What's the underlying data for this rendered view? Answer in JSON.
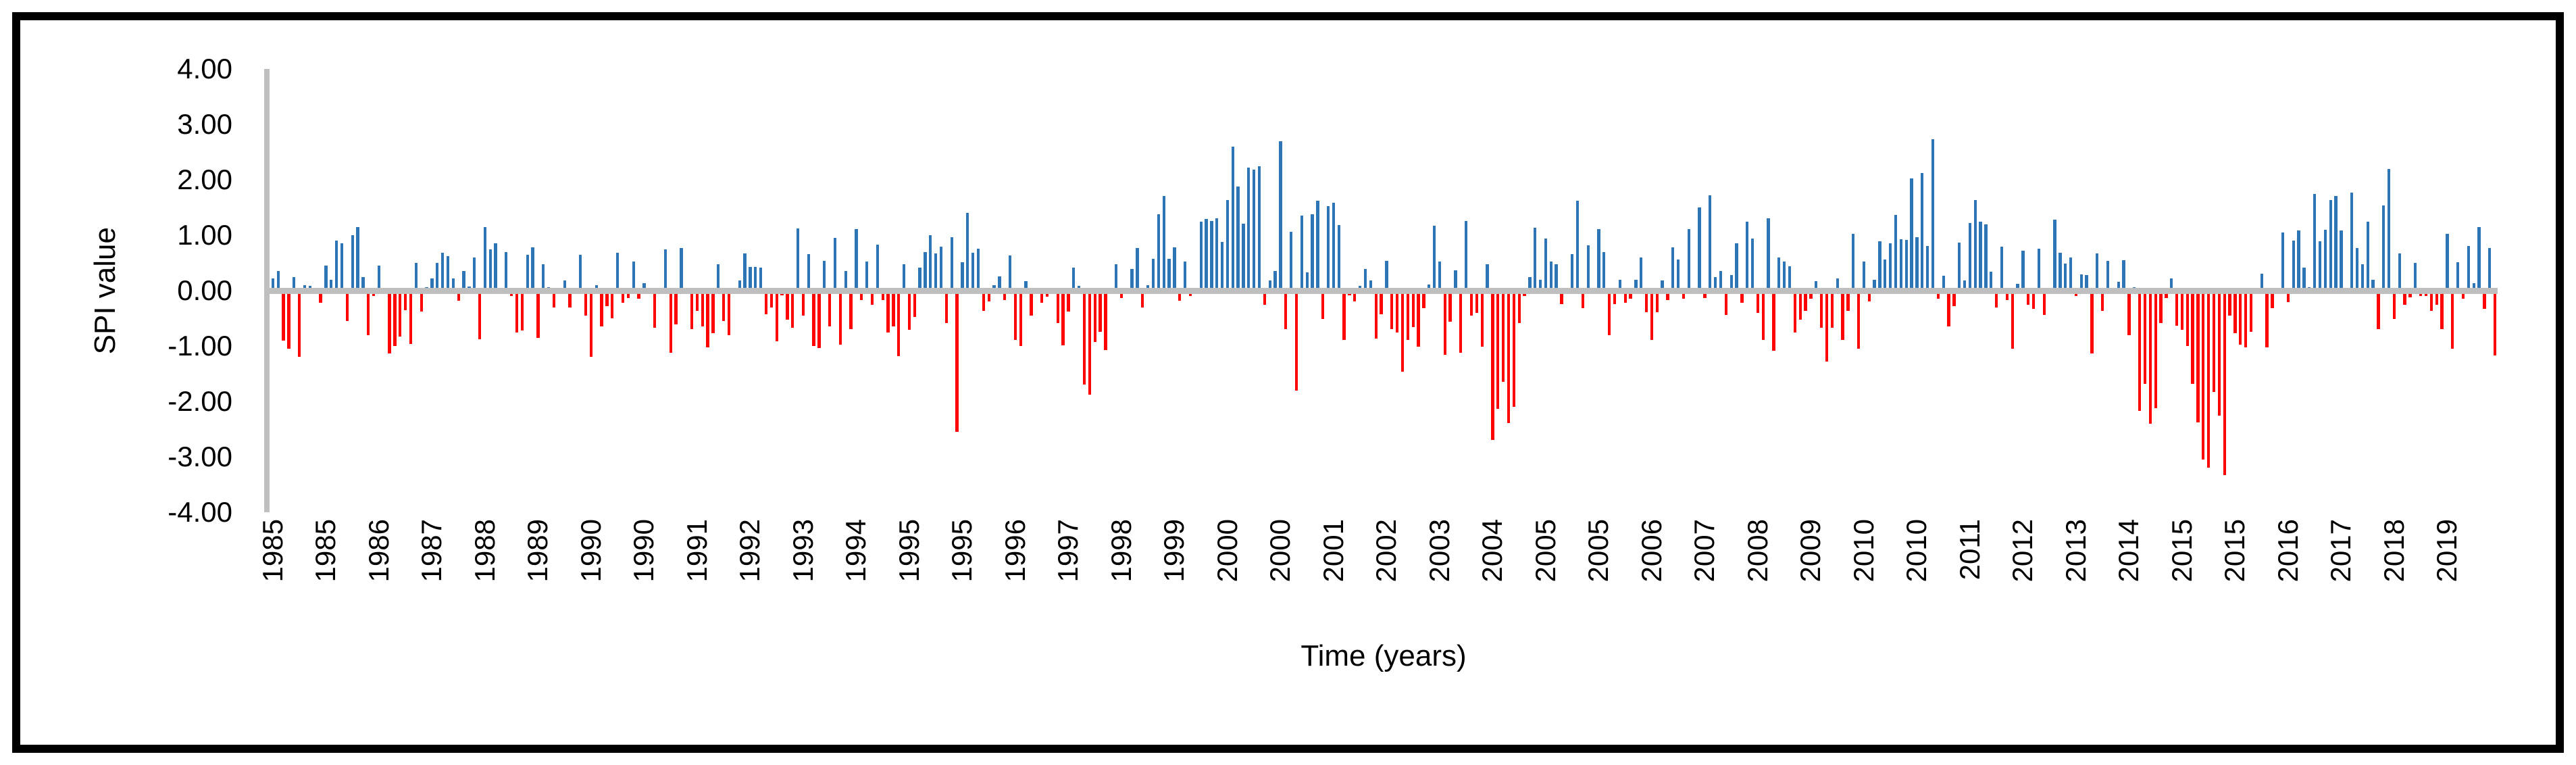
{
  "figure": {
    "background": "#FFFFFF",
    "border_color": "#000000"
  },
  "chart_data": {
    "type": "bar",
    "title": "",
    "ylabel": "SPI value",
    "xlabel": "Time (years)",
    "ylim": [
      -4,
      4
    ],
    "ytick_step": 1,
    "ytick_labels": [
      "4.00",
      "3.00",
      "2.00",
      "1.00",
      "0.00",
      "-1.00",
      "-2.00",
      "-3.00",
      "-4.00"
    ],
    "grid": false,
    "legend_position": "none",
    "x_start": "1985-01",
    "x_freq": "monthly",
    "xtick_every": 10,
    "xtick_labels": [
      "1985",
      "1985",
      "1986",
      "1987",
      "1988",
      "1989",
      "1990",
      "1990",
      "1991",
      "1992",
      "1993",
      "1994",
      "1995",
      "1995",
      "1996",
      "1997",
      "1998",
      "1999",
      "2000",
      "2000",
      "2001",
      "2002",
      "2003",
      "2004",
      "2005",
      "2005",
      "2006",
      "2007",
      "2008",
      "2009",
      "2010",
      "2010",
      "2011",
      "2012",
      "2013",
      "2014",
      "2015",
      "2015",
      "2016",
      "2017",
      "2018",
      "2019"
    ],
    "positive_color": "#2E75B6",
    "negative_color": "#FF0000",
    "axis_color": "#BFBFBF",
    "values": [
      0.22,
      0.35,
      -0.9,
      -1.05,
      0.25,
      -1.2,
      0.1,
      0.08,
      -0.05,
      -0.22,
      0.45,
      0.2,
      0.9,
      0.85,
      -0.55,
      1.0,
      1.15,
      0.25,
      -0.8,
      -0.1,
      0.45,
      -0.05,
      -1.14,
      -1.0,
      -0.83,
      -0.35,
      -0.96,
      0.5,
      -0.38,
      0.06,
      0.22,
      0.5,
      0.68,
      0.62,
      0.22,
      -0.18,
      0.35,
      0.07,
      0.6,
      -0.88,
      1.15,
      0.75,
      0.85,
      0.02,
      0.7,
      -0.1,
      -0.75,
      -0.72,
      0.65,
      0.78,
      -0.85,
      0.48,
      0.06,
      -0.3,
      0.05,
      0.18,
      -0.3,
      0.02,
      0.65,
      -0.45,
      -1.2,
      0.1,
      -0.65,
      -0.28,
      -0.5,
      0.68,
      -0.22,
      -0.14,
      0.52,
      -0.15,
      0.14,
      -0.02,
      -0.67,
      0.02,
      0.75,
      -1.12,
      -0.61,
      0.77,
      -0.05,
      -0.69,
      -0.37,
      -0.65,
      -1.02,
      -0.77,
      0.48,
      -0.55,
      -0.81,
      -0.06,
      0.18,
      0.67,
      0.43,
      0.43,
      0.42,
      -0.43,
      -0.3,
      -0.92,
      -0.08,
      -0.53,
      -0.67,
      1.12,
      -0.45,
      0.66,
      -1.0,
      -1.04,
      0.54,
      -0.65,
      0.95,
      -0.98,
      0.35,
      -0.69,
      1.11,
      -0.17,
      0.52,
      -0.26,
      0.83,
      -0.17,
      -0.75,
      -0.65,
      -1.18,
      0.47,
      -0.71,
      -0.47,
      0.41,
      0.7,
      1.0,
      0.67,
      0.79,
      -0.58,
      0.96,
      -2.55,
      0.51,
      1.4,
      0.68,
      0.76,
      -0.37,
      -0.2,
      0.1,
      0.26,
      -0.17,
      0.64,
      -0.89,
      -1.0,
      0.17,
      -0.45,
      -0.03,
      -0.22,
      -0.11,
      -0.04,
      -0.58,
      -0.99,
      -0.38,
      0.42,
      0.08,
      -1.7,
      -1.88,
      -0.93,
      -0.74,
      -1.07,
      -0.02,
      0.48,
      -0.13,
      -0.05,
      0.39,
      0.77,
      -0.3,
      0.1,
      0.57,
      1.38,
      1.71,
      0.57,
      0.78,
      -0.18,
      0.53,
      -0.1,
      0.03,
      1.25,
      1.29,
      1.26,
      1.3,
      0.88,
      1.63,
      2.6,
      1.88,
      1.21,
      2.22,
      2.18,
      2.24,
      -0.25,
      0.18,
      0.35,
      2.7,
      -0.7,
      1.06,
      -1.8,
      1.35,
      0.33,
      1.38,
      1.62,
      -0.51,
      1.53,
      1.58,
      1.18,
      -0.89,
      -0.08,
      -0.2,
      0.08,
      0.39,
      0.18,
      -0.87,
      -0.43,
      0.54,
      -0.69,
      -0.75,
      -1.46,
      -0.89,
      -0.66,
      -1.01,
      -0.32,
      0.11,
      1.17,
      0.52,
      -1.16,
      -0.56,
      0.36,
      -1.12,
      1.26,
      -0.45,
      -0.4,
      -1.01,
      0.47,
      -2.7,
      -2.13,
      -1.65,
      -2.39,
      -2.1,
      -0.58,
      -0.1,
      0.24,
      1.13,
      0.2,
      0.94,
      0.53,
      0.47,
      -0.24,
      0.05,
      0.66,
      1.62,
      -0.32,
      0.82,
      0.03,
      1.11,
      0.69,
      -0.81,
      -0.24,
      0.2,
      -0.22,
      -0.15,
      0.2,
      0.6,
      -0.39,
      -0.89,
      -0.39,
      0.18,
      -0.17,
      0.78,
      0.56,
      -0.15,
      1.11,
      -0.02,
      1.5,
      -0.13,
      1.72,
      0.24,
      0.35,
      -0.44,
      0.28,
      0.85,
      -0.22,
      1.24,
      0.94,
      -0.4,
      -0.89,
      1.3,
      -1.08,
      0.6,
      0.53,
      0.44,
      -0.76,
      -0.52,
      -0.37,
      -0.15,
      0.17,
      -0.67,
      -1.28,
      -0.67,
      0.22,
      -0.89,
      -0.37,
      1.02,
      -1.05,
      0.52,
      -0.2,
      0.2,
      0.89,
      0.56,
      0.85,
      1.37,
      0.93,
      0.91,
      2.02,
      0.96,
      2.12,
      0.8,
      2.73,
      -0.15,
      0.27,
      -0.65,
      -0.28,
      0.87,
      0.18,
      1.22,
      1.63,
      1.25,
      1.19,
      0.34,
      -0.3,
      0.79,
      -0.17,
      -1.05,
      0.12,
      0.72,
      -0.25,
      -0.33,
      0.76,
      -0.44,
      -0.02,
      1.28,
      0.68,
      0.49,
      0.6,
      -0.1,
      0.29,
      0.28,
      -1.13,
      0.67,
      -0.37,
      0.54,
      -0.04,
      0.16,
      0.55,
      -0.8,
      0.06,
      -2.17,
      -1.68,
      -2.4,
      -2.12,
      -0.59,
      -0.13,
      0.22,
      -0.64,
      -0.71,
      -1.0,
      -1.68,
      -2.38,
      -3.05,
      -3.2,
      -1.83,
      -2.25,
      -3.33,
      -0.45,
      -0.77,
      -0.97,
      -1.03,
      -0.74,
      0.03,
      0.3,
      -1.02,
      -0.32,
      -0.06,
      1.05,
      -0.21,
      0.9,
      1.08,
      0.41,
      0.06,
      1.74,
      0.89,
      1.1,
      1.63,
      1.71,
      1.09,
      -0.02,
      1.77,
      0.77,
      0.48,
      1.25,
      0.19,
      -0.7,
      1.54,
      2.2,
      -0.51,
      0.67,
      -0.25,
      -0.12,
      0.5,
      -0.1,
      -0.1,
      -0.37,
      -0.26,
      -0.7,
      1.02,
      -1.05,
      0.51,
      -0.15,
      0.81,
      0.14,
      1.15,
      -0.33,
      0.77,
      -1.17
    ]
  }
}
